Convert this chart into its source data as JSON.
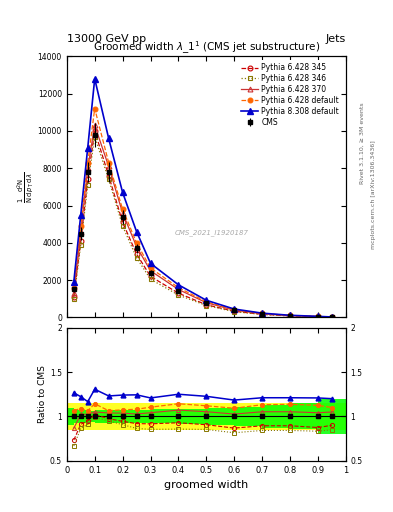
{
  "title": "Groomed width $\\lambda\\_1^1$ (CMS jet substructure)",
  "top_label": "13000 GeV pp",
  "top_right_label": "Jets",
  "right_label1": "Rivet 3.1.10, ≥ 3M events",
  "right_label2": "mcplots.cern.ch [arXiv:1306.3436]",
  "xlabel": "groomed width",
  "watermark": "CMS_2021_I1920187",
  "cms_x": [
    0.025,
    0.05,
    0.075,
    0.1,
    0.15,
    0.2,
    0.25,
    0.3,
    0.4,
    0.5,
    0.6,
    0.7,
    0.8,
    0.9,
    0.95
  ],
  "cms_y": [
    1500,
    4500,
    7800,
    9800,
    7800,
    5400,
    3700,
    2400,
    1400,
    750,
    380,
    190,
    95,
    48,
    20
  ],
  "cms_err": [
    150,
    350,
    550,
    650,
    550,
    380,
    260,
    170,
    110,
    60,
    35,
    20,
    12,
    7,
    4
  ],
  "p6_345_y": [
    1100,
    4100,
    7400,
    10000,
    7600,
    5100,
    3400,
    2200,
    1300,
    680,
    330,
    170,
    85,
    42,
    18
  ],
  "p6_346_y": [
    1000,
    3900,
    7100,
    9700,
    7400,
    4900,
    3200,
    2050,
    1200,
    640,
    310,
    160,
    80,
    40,
    17
  ],
  "p6_370_y": [
    1300,
    4600,
    8000,
    10300,
    8100,
    5600,
    3800,
    2500,
    1500,
    790,
    390,
    200,
    100,
    50,
    21
  ],
  "p6_def_y": [
    1600,
    4900,
    8300,
    11200,
    8300,
    5800,
    4000,
    2650,
    1600,
    840,
    415,
    215,
    108,
    54,
    22
  ],
  "p8_def_y": [
    1900,
    5500,
    9100,
    12800,
    9600,
    6700,
    4600,
    2900,
    1750,
    920,
    450,
    230,
    115,
    58,
    24
  ],
  "bin_edges": [
    0.0,
    0.025,
    0.05,
    0.075,
    0.1,
    0.15,
    0.2,
    0.25,
    0.3,
    0.4,
    0.5,
    0.6,
    0.7,
    0.8,
    0.9,
    1.0
  ],
  "ylim": [
    0,
    14000
  ],
  "yticks": [
    0,
    2000,
    4000,
    6000,
    8000,
    10000,
    12000,
    14000
  ],
  "ratio_ylim": [
    0.5,
    2.0
  ],
  "colors": {
    "cms": "#000000",
    "p6_345": "#cc0000",
    "p6_346": "#887700",
    "p6_370": "#cc3333",
    "p6_def": "#ff6600",
    "p8_def": "#0000cc"
  },
  "green_band": 0.05,
  "yellow_band": 0.15
}
